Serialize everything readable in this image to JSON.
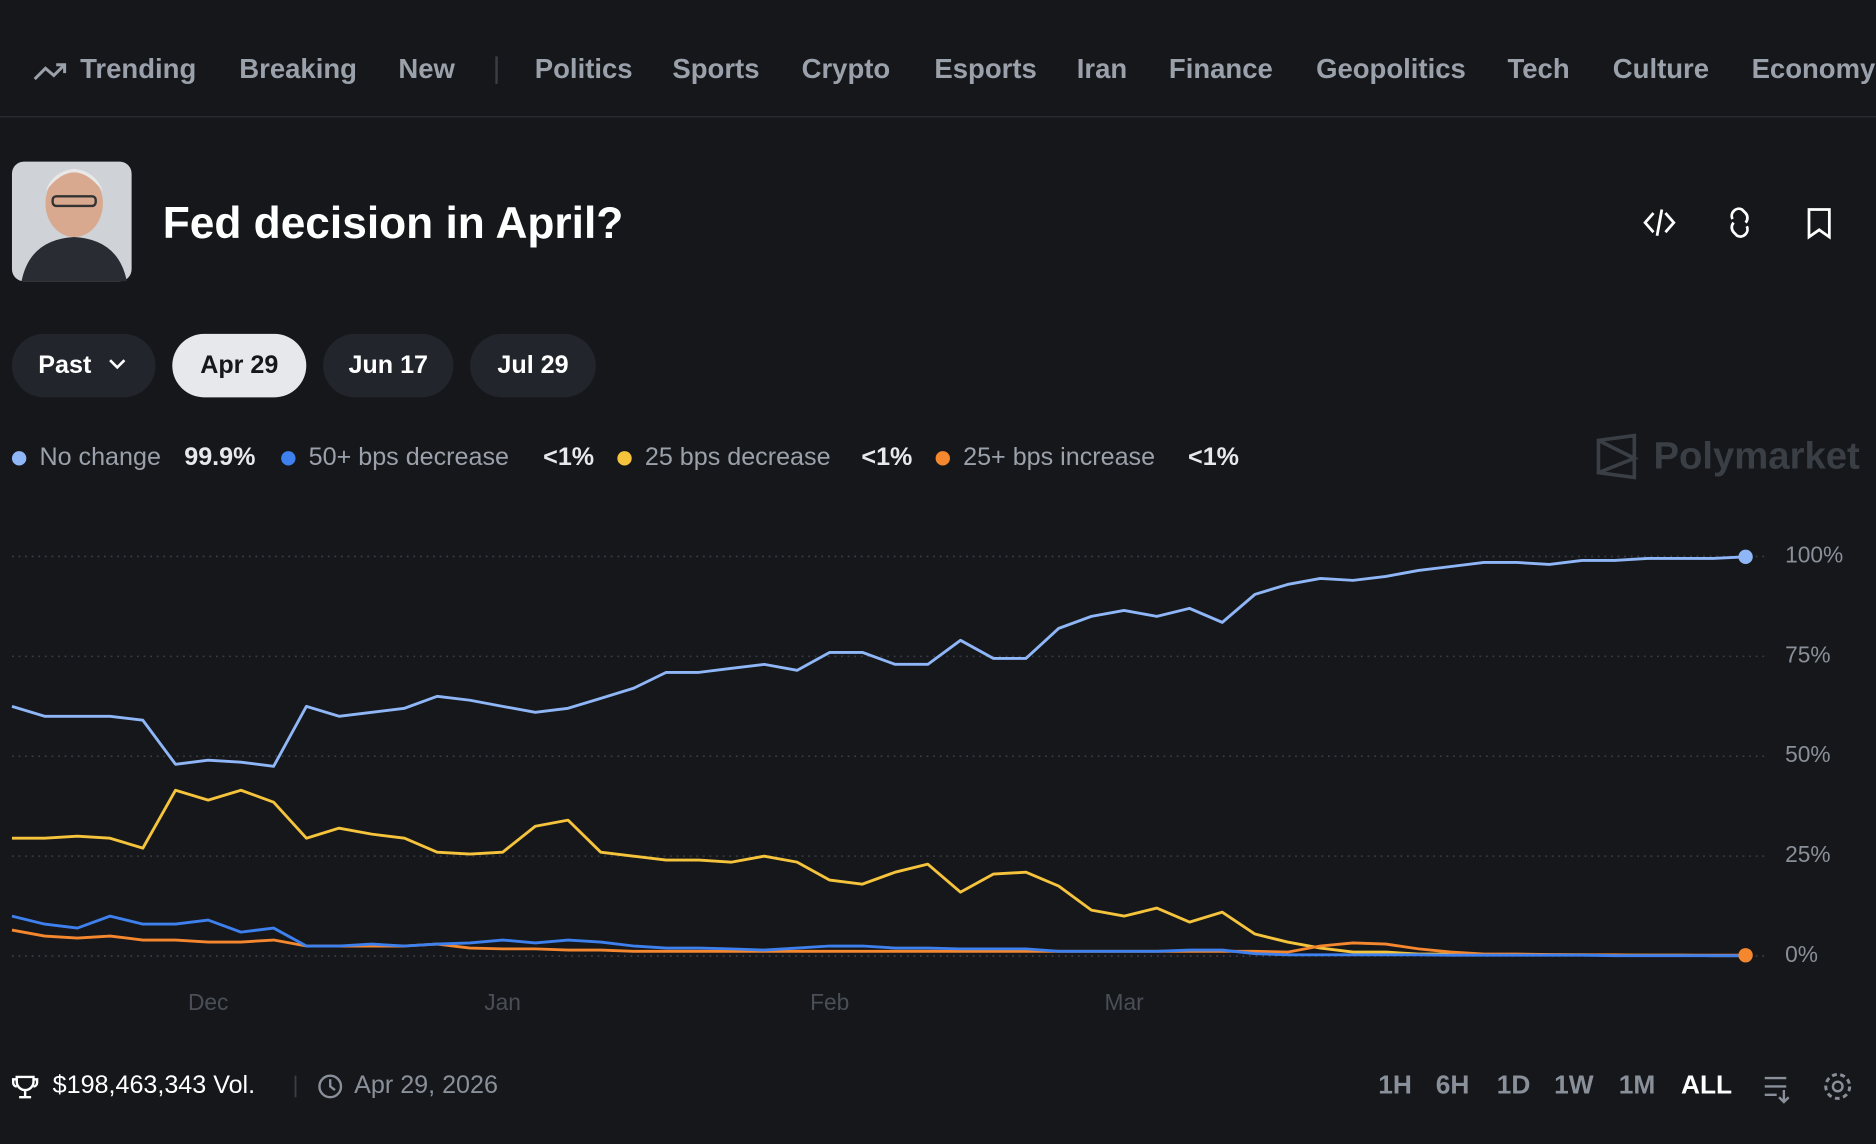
{
  "nav": {
    "items": [
      "Trending",
      "Breaking",
      "New",
      "Politics",
      "Sports",
      "Crypto",
      "Esports",
      "Iran",
      "Finance",
      "Geopolitics",
      "Tech",
      "Culture",
      "Economy"
    ]
  },
  "market": {
    "title": "Fed decision in April?"
  },
  "tabs": {
    "dropdown": "Past",
    "dates": [
      "Apr 29",
      "Jun 17",
      "Jul 29"
    ],
    "active": 0
  },
  "watermark": "Polymarket",
  "chart_data": {
    "type": "line",
    "categories": [
      null,
      null,
      null,
      null,
      null,
      null,
      "Dec",
      null,
      null,
      null,
      null,
      null,
      null,
      null,
      null,
      "Jan",
      null,
      null,
      null,
      null,
      null,
      null,
      null,
      null,
      null,
      "Feb",
      null,
      null,
      null,
      null,
      null,
      null,
      null,
      null,
      "Mar",
      null,
      null,
      null,
      null,
      null,
      null,
      null,
      null,
      null,
      null,
      null,
      null,
      null,
      null,
      null,
      null,
      null,
      null,
      null
    ],
    "series": [
      {
        "name": "No change",
        "color": "#8fb6f7",
        "current": "99.9%",
        "values": [
          62.5,
          60,
          60,
          60,
          59,
          48,
          49,
          48.5,
          47.5,
          62.5,
          60,
          61,
          62,
          65,
          64,
          62.5,
          61,
          62,
          64.5,
          67,
          71,
          71,
          72,
          73,
          71.5,
          76,
          76,
          73,
          73,
          79,
          74.5,
          74.5,
          82,
          85,
          86.5,
          85,
          87,
          83.5,
          90.5,
          93,
          94.5,
          94,
          95,
          96.5,
          97.5,
          98.5,
          98.5,
          98,
          99,
          99,
          99.5,
          99.5,
          99.5,
          99.9
        ]
      },
      {
        "name": "50+ bps decrease",
        "color": "#3d80ee",
        "current": "<1%",
        "values": [
          10,
          8,
          7,
          10,
          8,
          8,
          9,
          6,
          7,
          2.5,
          2.5,
          3,
          2.5,
          3,
          3.3,
          4,
          3.3,
          4,
          3.5,
          2.5,
          2,
          2,
          1.8,
          1.5,
          2,
          2.5,
          2.5,
          2,
          2,
          1.8,
          1.8,
          1.8,
          1.2,
          1.2,
          1.2,
          1.2,
          1.5,
          1.5,
          0.6,
          0.3,
          0.3,
          0.3,
          0.3,
          0.3,
          0.2,
          0.2,
          0.2,
          0.2,
          0.2,
          0.1,
          0.1,
          0.1,
          0.1,
          0.1
        ]
      },
      {
        "name": "25 bps decrease",
        "color": "#f5c43c",
        "current": "<1%",
        "values": [
          29.5,
          29.5,
          30,
          29.5,
          27,
          41.5,
          39,
          41.5,
          38.5,
          29.5,
          32,
          30.5,
          29.5,
          26,
          25.5,
          26,
          32.5,
          34,
          26,
          25,
          24,
          24,
          23.5,
          25,
          23.5,
          19,
          18,
          21,
          23,
          16,
          20.5,
          21,
          17.5,
          11.5,
          10,
          12,
          8.5,
          11,
          5.5,
          3.5,
          2,
          1,
          1,
          0.5,
          0.5,
          0.4,
          0.4,
          0.3,
          0.3,
          0.2,
          0.2,
          0.2,
          0.1,
          0.1
        ]
      },
      {
        "name": "25+ bps increase",
        "color": "#f5882f",
        "current": "<1%",
        "values": [
          6.5,
          5,
          4.5,
          5,
          4,
          4,
          3.5,
          3.5,
          4,
          2.5,
          2.5,
          2.5,
          2.5,
          3,
          2,
          1.8,
          1.8,
          1.5,
          1.5,
          1.2,
          1.2,
          1.2,
          1.2,
          1.2,
          1.2,
          1.2,
          1.2,
          1.2,
          1.2,
          1.2,
          1.2,
          1.2,
          1.2,
          1.2,
          1.2,
          1.2,
          1.2,
          1.2,
          1.2,
          1,
          2.5,
          3.3,
          3,
          1.8,
          1,
          0.5,
          0.5,
          0.4,
          0.3,
          0.3,
          0.2,
          0.2,
          0.2,
          0.2
        ]
      }
    ],
    "ylim": [
      0,
      100
    ],
    "yticks": [
      {
        "value": 0,
        "label": "0%"
      },
      {
        "value": 25,
        "label": "25%"
      },
      {
        "value": 50,
        "label": "50%"
      },
      {
        "value": 75,
        "label": "75%"
      },
      {
        "value": 100,
        "label": "100%"
      }
    ],
    "grid": true
  },
  "footer": {
    "volume": "$198,463,343 Vol.",
    "date": "Apr 29, 2026",
    "ranges": [
      "1H",
      "6H",
      "1D",
      "1W",
      "1M",
      "ALL"
    ],
    "active_range": 5
  }
}
